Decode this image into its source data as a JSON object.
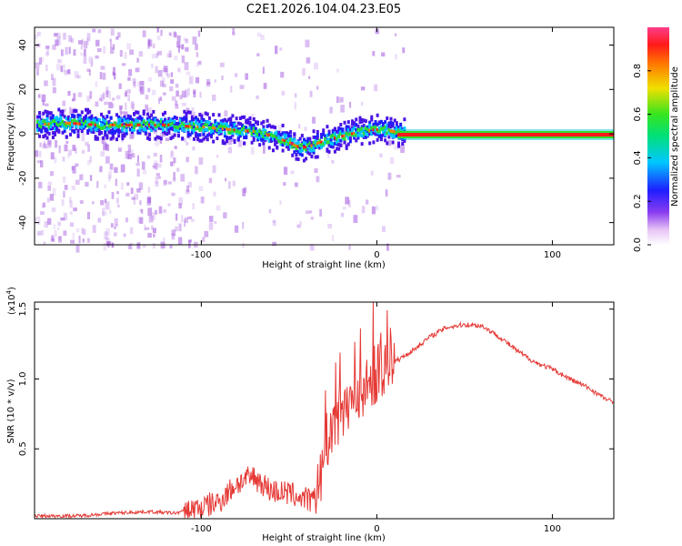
{
  "title": "C2E1.2026.104.04.23.E05",
  "chart_data": [
    {
      "type": "heatmap",
      "xlabel": "Height of straight line (km)",
      "ylabel": "Frequency (Hz)",
      "xlim": [
        -195,
        135
      ],
      "ylim": [
        -50,
        48
      ],
      "xticks": [
        -100,
        0,
        100
      ],
      "yticks": [
        -40,
        -20,
        0,
        20,
        40
      ],
      "colorbar": {
        "label": "Normalized spectral amplitude",
        "range": [
          0,
          1
        ],
        "ticks": [
          0.0,
          0.2,
          0.4,
          0.6,
          0.8
        ],
        "tick_labels": [
          "0.0",
          "0.2",
          "0.4",
          "0.6",
          "0.8"
        ]
      },
      "ridge": {
        "heights_km": [
          -195,
          -180,
          -160,
          -140,
          -120,
          -100,
          -85,
          -70,
          -60,
          -50,
          -45,
          -40,
          -30,
          -20,
          -10,
          0,
          10,
          15,
          135
        ],
        "frequency_hz": [
          4,
          5,
          4,
          4,
          4,
          3,
          2,
          1,
          -1,
          -4,
          -6,
          -6,
          -3,
          -1,
          1,
          2,
          1,
          0.5,
          0.5
        ]
      },
      "noise_region_km": [
        -195,
        -100
      ]
    },
    {
      "type": "line",
      "xlabel": "Height of straight line (km)",
      "ylabel": "SNR (10 * v/v)",
      "scale_label": "(x10",
      "scale_exp": "4",
      "scale_close": ")",
      "xlim": [
        -195,
        135
      ],
      "ylim": [
        0,
        1.55
      ],
      "xticks": [
        -100,
        0,
        100
      ],
      "yticks": [
        0.5,
        1.0,
        1.5
      ],
      "ytick_labels": [
        "0.5",
        "1.0",
        "1.5"
      ],
      "series": [
        {
          "name": "SNR",
          "color": "#e53935",
          "x": [
            -195,
            -170,
            -150,
            -130,
            -115,
            -100,
            -90,
            -80,
            -70,
            -60,
            -50,
            -40,
            -36,
            -32,
            -30,
            -25,
            -20,
            -15,
            -10,
            -5,
            0,
            10,
            20,
            30,
            40,
            50,
            60,
            70,
            80,
            90,
            100,
            110,
            120,
            130,
            135
          ],
          "y": [
            0.02,
            0.02,
            0.04,
            0.05,
            0.04,
            0.08,
            0.12,
            0.25,
            0.3,
            0.2,
            0.18,
            0.14,
            0.12,
            0.25,
            0.5,
            0.65,
            0.8,
            0.85,
            0.9,
            0.95,
            1.05,
            1.12,
            1.2,
            1.3,
            1.37,
            1.39,
            1.38,
            1.3,
            1.2,
            1.12,
            1.07,
            1.0,
            0.94,
            0.86,
            0.83
          ]
        }
      ]
    }
  ]
}
